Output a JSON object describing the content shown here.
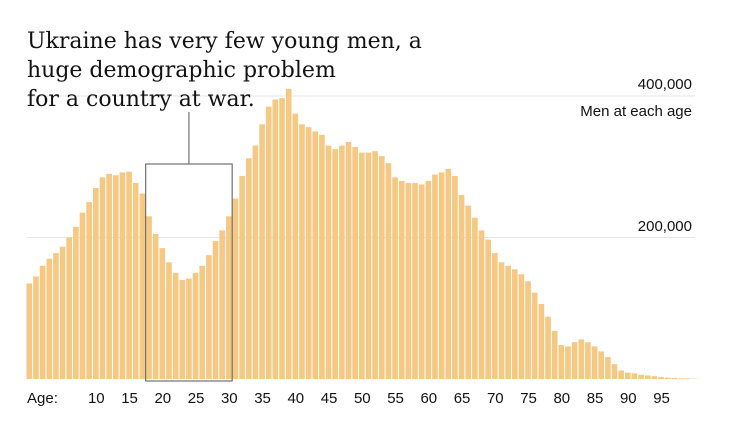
{
  "chart_data": {
    "type": "bar",
    "title_lines": [
      "Ukraine has very few young men, a",
      "huge demographic problem",
      "for a country at war."
    ],
    "unit_label": "Men at each age",
    "x_axis_prefix": "Age:",
    "x_ticks": [
      10,
      15,
      20,
      25,
      30,
      35,
      40,
      45,
      50,
      55,
      60,
      65,
      70,
      75,
      80,
      85,
      90,
      95
    ],
    "y_ticks": [
      {
        "value": 200000,
        "label": "200,000"
      },
      {
        "value": 400000,
        "label": "400,000"
      }
    ],
    "ylim": [
      0,
      400000
    ],
    "highlight_range": [
      18,
      30
    ],
    "bar_color": "#f5c983",
    "ages": [
      0,
      1,
      2,
      3,
      4,
      5,
      6,
      7,
      8,
      9,
      10,
      11,
      12,
      13,
      14,
      15,
      16,
      17,
      18,
      19,
      20,
      21,
      22,
      23,
      24,
      25,
      26,
      27,
      28,
      29,
      30,
      31,
      32,
      33,
      34,
      35,
      36,
      37,
      38,
      39,
      40,
      41,
      42,
      43,
      44,
      45,
      46,
      47,
      48,
      49,
      50,
      51,
      52,
      53,
      54,
      55,
      56,
      57,
      58,
      59,
      60,
      61,
      62,
      63,
      64,
      65,
      66,
      67,
      68,
      69,
      70,
      71,
      72,
      73,
      74,
      75,
      76,
      77,
      78,
      79,
      80,
      81,
      82,
      83,
      84,
      85,
      86,
      87,
      88,
      89,
      90,
      91,
      92,
      93,
      94,
      95,
      96,
      97,
      98,
      99,
      100
    ],
    "values": [
      135000,
      145000,
      160000,
      170000,
      178000,
      187000,
      200000,
      215000,
      235000,
      250000,
      270000,
      285000,
      290000,
      288000,
      292000,
      293000,
      277000,
      262000,
      230000,
      205000,
      185000,
      165000,
      150000,
      140000,
      142000,
      150000,
      160000,
      175000,
      195000,
      210000,
      230000,
      255000,
      287000,
      312000,
      330000,
      360000,
      385000,
      395000,
      397000,
      410000,
      375000,
      360000,
      356000,
      350000,
      345000,
      330000,
      325000,
      330000,
      335000,
      328000,
      320000,
      320000,
      322000,
      315000,
      305000,
      285000,
      280000,
      277000,
      277000,
      275000,
      280000,
      289000,
      292000,
      297000,
      287000,
      260000,
      245000,
      228000,
      210000,
      197000,
      178000,
      165000,
      160000,
      155000,
      148000,
      138000,
      122000,
      106000,
      88000,
      68000,
      48000,
      46000,
      52000,
      56000,
      52000,
      46000,
      39000,
      31000,
      21000,
      12000,
      9000,
      8000,
      6000,
      5000,
      4000,
      3000,
      2000,
      1500,
      1000,
      1000,
      500
    ]
  }
}
